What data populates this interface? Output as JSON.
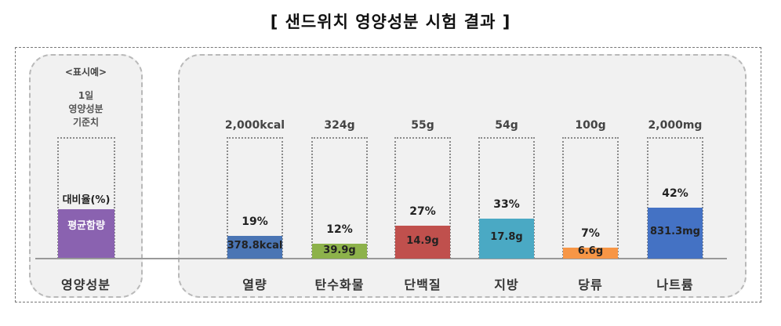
{
  "title": "[ 샌드위치 영양성분 시험 결과 ]",
  "legend": {
    "heading": "<표시예>",
    "standard_lines": [
      "1일",
      "영양성분",
      "기준치"
    ],
    "ratio_label": "대비율(%)",
    "average_label": "평균함량",
    "category_label": "영양성분",
    "color": "#8a62b0"
  },
  "chart_data": {
    "type": "bar",
    "categories": [
      "열량",
      "탄수화물",
      "단백질",
      "지방",
      "당류",
      "나트륨"
    ],
    "daily_standard": [
      "2,000kcal",
      "324g",
      "55g",
      "54g",
      "100g",
      "2,000mg"
    ],
    "percent_labels": [
      "19%",
      "12%",
      "27%",
      "33%",
      "7%",
      "42%"
    ],
    "values": [
      19,
      12,
      27,
      33,
      7,
      42
    ],
    "amount_labels": [
      "378.8kcal",
      "39.9g",
      "14.9g",
      "17.8g",
      "6.6g",
      "831.3mg"
    ],
    "colors": [
      "#4a75b4",
      "#8db24b",
      "#c0504d",
      "#4aa9c4",
      "#f79646",
      "#4472c4"
    ],
    "grid": false
  }
}
